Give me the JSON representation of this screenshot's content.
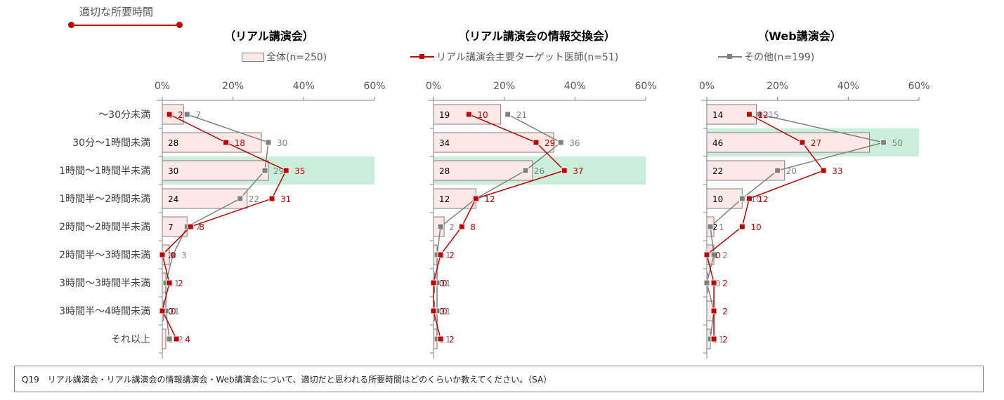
{
  "annotation": {
    "label": "適切な所要時間",
    "color": "#c00000"
  },
  "legend": {
    "total": "全体(n=250)",
    "target": "リアル講演会主要ターゲット医師(n=51)",
    "other": "その他(n=199)"
  },
  "colors": {
    "bar_fill": "#fce8e4",
    "bar_stroke": "#7f7f7f",
    "target_line": "#c00000",
    "other_line": "#808080",
    "highlight": "#c9eed9",
    "axis": "#808080"
  },
  "footer": {
    "text": "Q19　リアル講演会・リアル講演会の情報講演会・Web講演会について、適切だと思われる所要時間はどのくらいか教えてください。（SA）"
  },
  "chart_data": [
    {
      "type": "bar+line",
      "title": "（リアル講演会）",
      "orientation": "horizontal",
      "categories": [
        "～30分未満",
        "30分～1時間未満",
        "1時間～1時間半未満",
        "1時間半～2時間未満",
        "2時間～2時間半未満",
        "2時間半～3時間未満",
        "3時間～3時間半未満",
        "3時間半～4時間未満",
        "それ以上"
      ],
      "xticks": [
        "0%",
        "20%",
        "40%",
        "60%"
      ],
      "xlim": [
        0,
        60
      ],
      "highlight_index": 2,
      "series": [
        {
          "name": "全体(n=250)",
          "kind": "bar",
          "values": [
            6,
            28,
            30,
            24,
            7,
            2,
            1,
            0,
            1
          ]
        },
        {
          "name": "リアル講演会主要ターゲット医師(n=51)",
          "kind": "line",
          "values": [
            2,
            18,
            35,
            31,
            8,
            0,
            2,
            0,
            4
          ]
        },
        {
          "name": "その他(n=199)",
          "kind": "line",
          "values": [
            7,
            30,
            29,
            22,
            7,
            3,
            1,
            1,
            2
          ]
        }
      ]
    },
    {
      "type": "bar+line",
      "title": "（リアル講演会の情報交換会）",
      "orientation": "horizontal",
      "categories": [
        "～30分未満",
        "30分～1時間未満",
        "1時間～1時間半未満",
        "1時間半～2時間未満",
        "2時間～2時間半未満",
        "2時間半～3時間未満",
        "3時間～3時間半未満",
        "3時間半～4時間未満",
        "それ以上"
      ],
      "xticks": [
        "0%",
        "20%",
        "40%",
        "60%"
      ],
      "xlim": [
        0,
        60
      ],
      "highlight_index": 2,
      "series": [
        {
          "name": "全体(n=250)",
          "kind": "bar",
          "values": [
            19,
            34,
            28,
            12,
            3,
            1,
            0,
            0,
            1
          ]
        },
        {
          "name": "リアル講演会主要ターゲット医師(n=51)",
          "kind": "line",
          "values": [
            10,
            29,
            37,
            12,
            8,
            2,
            0,
            0,
            2
          ]
        },
        {
          "name": "その他(n=199)",
          "kind": "line",
          "values": [
            21,
            36,
            26,
            12,
            2,
            1,
            1,
            1,
            1
          ]
        }
      ]
    },
    {
      "type": "bar+line",
      "title": "（Web講演会）",
      "orientation": "horizontal",
      "categories": [
        "～30分未満",
        "30分～1時間未満",
        "1時間～1時間半未満",
        "1時間半～2時間未満",
        "2時間～2時間半未満",
        "2時間半～3時間未満",
        "3時間～3時間半未満",
        "3時間半～4時間未満",
        "それ以上"
      ],
      "xticks": [
        "0%",
        "20%",
        "40%",
        "60%"
      ],
      "xlim": [
        0,
        60
      ],
      "highlight_index": 1,
      "series": [
        {
          "name": "全体(n=250)",
          "kind": "bar",
          "values": [
            14,
            46,
            22,
            10,
            2,
            2,
            0,
            2,
            1
          ]
        },
        {
          "name": "リアル講演会主要ターゲット医師(n=51)",
          "kind": "line",
          "values": [
            12,
            27,
            33,
            12,
            10,
            0,
            2,
            2,
            2
          ]
        },
        {
          "name": "その他(n=199)",
          "kind": "line",
          "values": [
            15,
            50,
            20,
            10,
            1,
            2,
            0,
            2,
            1
          ]
        }
      ]
    }
  ]
}
